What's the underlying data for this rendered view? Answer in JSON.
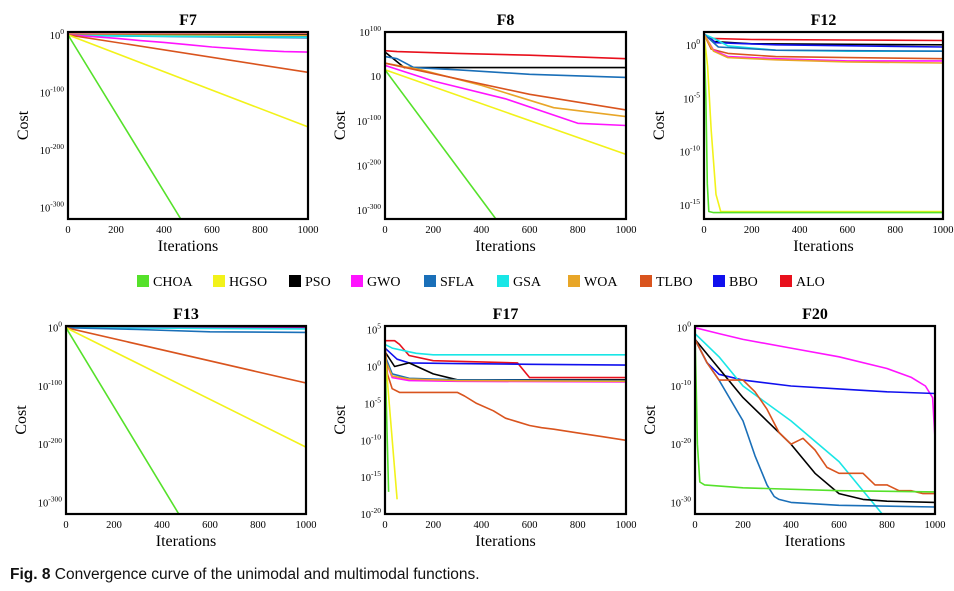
{
  "caption": {
    "label": "Fig. 8",
    "text": "Convergence curve of the unimodal and multimodal functions."
  },
  "legend": [
    {
      "name": "CHOA",
      "color": "#55e12a"
    },
    {
      "name": "HGSO",
      "color": "#f2f21a"
    },
    {
      "name": "PSO",
      "color": "#000000"
    },
    {
      "name": "GWO",
      "color": "#ff14ff"
    },
    {
      "name": "SFLA",
      "color": "#1a6fb8"
    },
    {
      "name": "GSA",
      "color": "#19e6e6"
    },
    {
      "name": "WOA",
      "color": "#e8a628"
    },
    {
      "name": "TLBO",
      "color": "#d9541e"
    },
    {
      "name": "BBO",
      "color": "#1010ee"
    },
    {
      "name": "ALO",
      "color": "#e8101c"
    }
  ],
  "chart_data": [
    {
      "type": "line",
      "title": "F7",
      "xlabel": "Iterations",
      "ylabel": "Cost",
      "xlim": [
        0,
        1000
      ],
      "ylim": [
        -320,
        5
      ],
      "xticks": [
        "0",
        "200",
        "400",
        "600",
        "800",
        "1000"
      ],
      "yticks": [
        {
          "value": 0,
          "base": "10",
          "exp": "0"
        },
        {
          "value": -100,
          "base": "10",
          "exp": "-100"
        },
        {
          "value": -200,
          "base": "10",
          "exp": "-200"
        },
        {
          "value": -300,
          "base": "10",
          "exp": "-300"
        }
      ],
      "series": [
        {
          "name": "ALO",
          "x": [
            0,
            1000
          ],
          "y": [
            1,
            1
          ]
        },
        {
          "name": "PSO",
          "x": [
            0,
            1000
          ],
          "y": [
            0,
            0
          ]
        },
        {
          "name": "BBO",
          "x": [
            0,
            1000
          ],
          "y": [
            0,
            -2
          ]
        },
        {
          "name": "WOA",
          "x": [
            0,
            1000
          ],
          "y": [
            0,
            -1
          ]
        },
        {
          "name": "SFLA",
          "x": [
            0,
            1000
          ],
          "y": [
            -1,
            -5
          ]
        },
        {
          "name": "GSA",
          "x": [
            0,
            1000
          ],
          "y": [
            -1,
            -4
          ]
        },
        {
          "name": "GWO",
          "x": [
            0,
            100,
            200,
            300,
            400,
            500,
            600,
            700,
            800,
            900,
            1000
          ],
          "y": [
            0,
            -3,
            -6,
            -10,
            -13,
            -17,
            -21,
            -24,
            -27,
            -29,
            -30
          ]
        },
        {
          "name": "TLBO",
          "x": [
            0,
            1000
          ],
          "y": [
            0,
            -65
          ]
        },
        {
          "name": "HGSO",
          "x": [
            0,
            1000
          ],
          "y": [
            0,
            -160
          ]
        },
        {
          "name": "CHOA",
          "x": [
            0,
            470
          ],
          "y": [
            0,
            -320
          ]
        }
      ]
    },
    {
      "type": "line",
      "title": "F8",
      "xlabel": "Iterations",
      "ylabel": "Cost",
      "xlim": [
        0,
        1000
      ],
      "ylim": [
        -320,
        100
      ],
      "xticks": [
        "0",
        "200",
        "400",
        "600",
        "800",
        "1000"
      ],
      "yticks": [
        {
          "value": 100,
          "base": "10",
          "exp": "100"
        },
        {
          "value": 1,
          "base": "10",
          "exp": ""
        },
        {
          "value": -100,
          "base": "10",
          "exp": "-100"
        },
        {
          "value": -200,
          "base": "10",
          "exp": "-200"
        },
        {
          "value": -300,
          "base": "10",
          "exp": "-300"
        }
      ],
      "series": [
        {
          "name": "ALO",
          "x": [
            0,
            50,
            300,
            600,
            1000
          ],
          "y": [
            58,
            56,
            52,
            48,
            40
          ]
        },
        {
          "name": "PSO",
          "x": [
            0,
            80,
            200,
            1000
          ],
          "y": [
            55,
            20,
            20,
            20
          ]
        },
        {
          "name": "SFLA",
          "x": [
            0,
            50,
            120,
            300,
            600,
            1000
          ],
          "y": [
            45,
            40,
            20,
            15,
            5,
            -2
          ]
        },
        {
          "name": "WOA",
          "x": [
            0,
            150,
            400,
            700,
            1000
          ],
          "y": [
            30,
            15,
            -20,
            -70,
            -90
          ]
        },
        {
          "name": "TLBO",
          "x": [
            0,
            300,
            600,
            1000
          ],
          "y": [
            30,
            -5,
            -40,
            -75
          ]
        },
        {
          "name": "GWO",
          "x": [
            0,
            200,
            500,
            800,
            1000
          ],
          "y": [
            25,
            -10,
            -50,
            -105,
            -110
          ]
        },
        {
          "name": "HGSO",
          "x": [
            0,
            1000
          ],
          "y": [
            15,
            -175
          ]
        },
        {
          "name": "CHOA",
          "x": [
            0,
            460
          ],
          "y": [
            15,
            -320
          ]
        }
      ]
    },
    {
      "type": "line",
      "title": "F12",
      "xlabel": "Iterations",
      "ylabel": "Cost",
      "xlim": [
        0,
        1000
      ],
      "ylim": [
        -16.3,
        1.2
      ],
      "xticks": [
        "0",
        "200",
        "400",
        "600",
        "800",
        "1000"
      ],
      "yticks": [
        {
          "value": 0,
          "base": "10",
          "exp": "0"
        },
        {
          "value": -5,
          "base": "10",
          "exp": "-5"
        },
        {
          "value": -10,
          "base": "10",
          "exp": "-10"
        },
        {
          "value": -15,
          "base": "10",
          "exp": "-15"
        }
      ],
      "series": [
        {
          "name": "ALO",
          "x": [
            0,
            30,
            200,
            600,
            1000
          ],
          "y": [
            1,
            0.6,
            0.5,
            0.45,
            0.4
          ]
        },
        {
          "name": "PSO",
          "x": [
            0,
            40,
            200,
            600,
            1000
          ],
          "y": [
            1,
            0.3,
            0.1,
            0.05,
            0
          ]
        },
        {
          "name": "BBO",
          "x": [
            0,
            50,
            300,
            1000
          ],
          "y": [
            1,
            0.2,
            0,
            -0.2
          ]
        },
        {
          "name": "GSA",
          "x": [
            0,
            50,
            100,
            300,
            600,
            1000
          ],
          "y": [
            1,
            0.5,
            -0.1,
            -0.5,
            -0.6,
            -0.6
          ]
        },
        {
          "name": "SFLA",
          "x": [
            0,
            60,
            300,
            1000
          ],
          "y": [
            1,
            -0.2,
            -0.5,
            -0.6
          ]
        },
        {
          "name": "TLBO",
          "x": [
            0,
            30,
            100,
            300,
            600,
            1000
          ],
          "y": [
            1,
            -0.4,
            -0.8,
            -1.1,
            -1.2,
            -1.3
          ]
        },
        {
          "name": "GWO",
          "x": [
            0,
            40,
            100,
            300,
            600,
            1000
          ],
          "y": [
            1,
            -0.5,
            -1.1,
            -1.3,
            -1.5,
            -1.5
          ]
        },
        {
          "name": "WOA",
          "x": [
            0,
            40,
            100,
            300,
            600,
            1000
          ],
          "y": [
            1,
            -0.6,
            -1.2,
            -1.4,
            -1.6,
            -1.7
          ]
        },
        {
          "name": "HGSO",
          "x": [
            0,
            15,
            30,
            50,
            70,
            1000
          ],
          "y": [
            1,
            -2,
            -8,
            -14,
            -15.6,
            -15.6
          ]
        },
        {
          "name": "CHOA",
          "x": [
            0,
            8,
            14,
            20,
            40,
            1000
          ],
          "y": [
            1,
            -5,
            -13,
            -15.6,
            -15.7,
            -15.7
          ]
        }
      ]
    },
    {
      "type": "line",
      "title": "F13",
      "xlabel": "Iterations",
      "ylabel": "Cost",
      "xlim": [
        0,
        1000
      ],
      "ylim": [
        -320,
        3
      ],
      "xticks": [
        "0",
        "200",
        "400",
        "600",
        "800",
        "1000"
      ],
      "yticks": [
        {
          "value": 0,
          "base": "10",
          "exp": "0"
        },
        {
          "value": -100,
          "base": "10",
          "exp": "-100"
        },
        {
          "value": -200,
          "base": "10",
          "exp": "-200"
        },
        {
          "value": -300,
          "base": "10",
          "exp": "-300"
        }
      ],
      "series": [
        {
          "name": "ALO",
          "x": [
            0,
            1000
          ],
          "y": [
            1,
            1
          ]
        },
        {
          "name": "PSO",
          "x": [
            0,
            1000
          ],
          "y": [
            0,
            0
          ]
        },
        {
          "name": "GWO",
          "x": [
            0,
            1000
          ],
          "y": [
            0,
            -1
          ]
        },
        {
          "name": "GSA",
          "x": [
            0,
            1000
          ],
          "y": [
            0,
            -2
          ]
        },
        {
          "name": "SFLA",
          "x": [
            0,
            100,
            300,
            600,
            1000
          ],
          "y": [
            0,
            -1,
            -3,
            -7,
            -8
          ]
        },
        {
          "name": "TLBO",
          "x": [
            0,
            1000
          ],
          "y": [
            0,
            -95
          ]
        },
        {
          "name": "HGSO",
          "x": [
            0,
            1000
          ],
          "y": [
            0,
            -205
          ]
        },
        {
          "name": "CHOA",
          "x": [
            0,
            470
          ],
          "y": [
            0,
            -320
          ]
        }
      ]
    },
    {
      "type": "line",
      "title": "F17",
      "xlabel": "Iterations",
      "ylabel": "Cost",
      "xlim": [
        0,
        1000
      ],
      "ylim": [
        -20,
        5.5
      ],
      "xticks": [
        "0",
        "200",
        "400",
        "600",
        "800",
        "1000"
      ],
      "yticks": [
        {
          "value": 5,
          "base": "10",
          "exp": "5"
        },
        {
          "value": 0,
          "base": "10",
          "exp": "0"
        },
        {
          "value": -5,
          "base": "10",
          "exp": "-5"
        },
        {
          "value": -10,
          "base": "10",
          "exp": "-10"
        },
        {
          "value": -15,
          "base": "10",
          "exp": "-15"
        },
        {
          "value": -20,
          "base": "10",
          "exp": "-20"
        }
      ],
      "series": [
        {
          "name": "ALO",
          "x": [
            0,
            40,
            60,
            100,
            200,
            550,
            600,
            1000
          ],
          "y": [
            3.5,
            3.5,
            3,
            1.5,
            0.8,
            0.5,
            -1.5,
            -1.5
          ]
        },
        {
          "name": "GSA",
          "x": [
            0,
            30,
            100,
            130,
            200,
            1000
          ],
          "y": [
            3,
            2.5,
            2,
            1.8,
            1.6,
            1.6
          ]
        },
        {
          "name": "BBO",
          "x": [
            0,
            50,
            100,
            300,
            600,
            1000
          ],
          "y": [
            2.5,
            1,
            0.5,
            0.4,
            0.3,
            0.2
          ]
        },
        {
          "name": "PSO",
          "x": [
            0,
            40,
            100,
            200,
            300,
            1000
          ],
          "y": [
            2,
            0,
            0.5,
            -1,
            -1.8,
            -1.8
          ]
        },
        {
          "name": "SFLA",
          "x": [
            0,
            30,
            100,
            300,
            1000
          ],
          "y": [
            1.5,
            -1,
            -1.6,
            -1.8,
            -1.9
          ]
        },
        {
          "name": "GWO",
          "x": [
            0,
            30,
            100,
            300,
            1000
          ],
          "y": [
            1,
            -1.5,
            -1.9,
            -2,
            -2.1
          ]
        },
        {
          "name": "WOA",
          "x": [
            0,
            30,
            100,
            300,
            1000
          ],
          "y": [
            1,
            -1.3,
            -1.7,
            -1.9,
            -2.0
          ]
        },
        {
          "name": "TLBO",
          "x": [
            0,
            10,
            30,
            60,
            300,
            330,
            380,
            450,
            500,
            550,
            600,
            650,
            700,
            800,
            900,
            1000
          ],
          "y": [
            3,
            -1,
            -3,
            -3.5,
            -3.5,
            -4,
            -5,
            -6,
            -7,
            -7.5,
            -8,
            -8.3,
            -8.5,
            -9.0,
            -9.5,
            -10
          ]
        },
        {
          "name": "HGSO",
          "x": [
            0,
            50
          ],
          "y": [
            2,
            -18
          ]
        },
        {
          "name": "CHOA",
          "x": [
            0,
            15
          ],
          "y": [
            2,
            -17
          ]
        }
      ]
    },
    {
      "type": "line",
      "title": "F20",
      "xlabel": "Iterations",
      "ylabel": "Cost",
      "xlim": [
        0,
        1000
      ],
      "ylim": [
        -32,
        0.3
      ],
      "xticks": [
        "0",
        "200",
        "400",
        "600",
        "800",
        "1000"
      ],
      "yticks": [
        {
          "value": 0,
          "base": "10",
          "exp": "0"
        },
        {
          "value": -10,
          "base": "10",
          "exp": "-10"
        },
        {
          "value": -20,
          "base": "10",
          "exp": "-20"
        },
        {
          "value": -30,
          "base": "10",
          "exp": "-30"
        }
      ],
      "series": [
        {
          "name": "GWO",
          "x": [
            0,
            100,
            200,
            400,
            600,
            800,
            900,
            960,
            990,
            1000
          ],
          "y": [
            0,
            -1,
            -2,
            -3.5,
            -5,
            -7,
            -8.5,
            -10,
            -12,
            -19
          ]
        },
        {
          "name": "BBO",
          "x": [
            0,
            50,
            100,
            200,
            400,
            600,
            800,
            1000
          ],
          "y": [
            -2,
            -6,
            -8,
            -9,
            -10,
            -10.5,
            -11,
            -11.3
          ]
        },
        {
          "name": "GSA",
          "x": [
            0,
            100,
            200,
            400,
            600,
            700,
            780
          ],
          "y": [
            -1,
            -5,
            -10,
            -16,
            -23,
            -28,
            -32
          ]
        },
        {
          "name": "PSO",
          "x": [
            0,
            100,
            200,
            300,
            400,
            500,
            600,
            700,
            800,
            1000
          ],
          "y": [
            -2,
            -7,
            -12,
            -16,
            -20,
            -25,
            -28.5,
            -29.5,
            -29.8,
            -30
          ]
        },
        {
          "name": "SFLA",
          "x": [
            0,
            50,
            100,
            200,
            250,
            300,
            330,
            350,
            400,
            600,
            1000
          ],
          "y": [
            -2,
            -6,
            -9,
            -16,
            -22,
            -27,
            -29,
            -29.5,
            -30,
            -30.5,
            -30.8
          ]
        },
        {
          "name": "TLBO",
          "x": [
            0,
            50,
            100,
            200,
            250,
            300,
            350,
            400,
            450,
            500,
            550,
            600,
            700,
            750,
            800,
            850,
            900,
            950,
            1000
          ],
          "y": [
            -2,
            -6,
            -9,
            -9,
            -11,
            -14,
            -18,
            -20,
            -19,
            -21,
            -24,
            -25,
            -25,
            -27,
            -27,
            -28,
            -28,
            -28.5,
            -28.5
          ]
        },
        {
          "name": "CHOA",
          "x": [
            0,
            5,
            10,
            20,
            40,
            200,
            600,
            1000
          ],
          "y": [
            -1,
            -10,
            -20,
            -26.5,
            -27,
            -27.5,
            -28,
            -28.2
          ]
        }
      ]
    }
  ]
}
